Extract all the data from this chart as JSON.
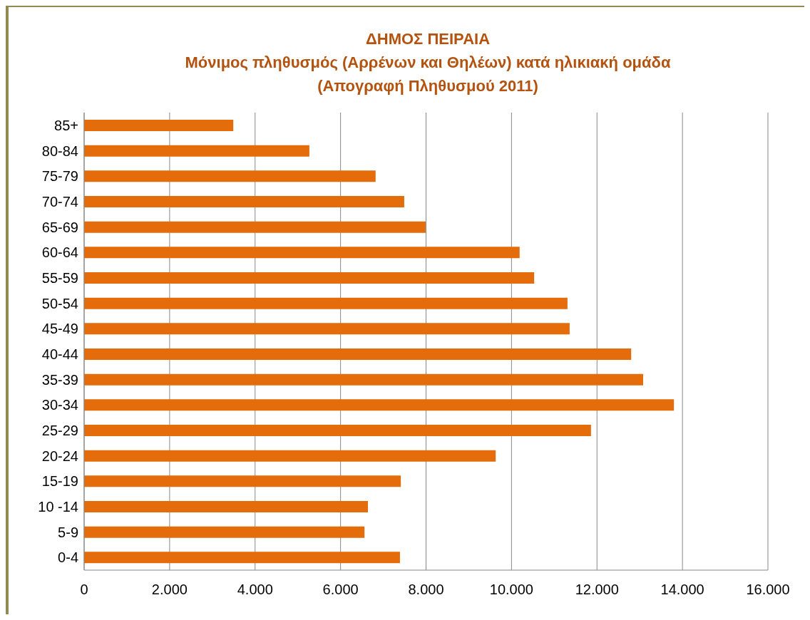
{
  "chart_data": {
    "type": "bar",
    "orientation": "horizontal",
    "title": "ΔΗΜΟΣ ΠΕΙΡΑΙΑ\nΜόνιμος πληθυσμός (Αρρένων και Θηλέων) κατά ηλικιακή ομάδα\n(Απογραφή Πληθυσμού 2011)",
    "categories": [
      "85+",
      "80-84",
      "75-79",
      "70-74",
      "65-69",
      "60-64",
      "55-59",
      "50-54",
      "45-49",
      "40-44",
      "35-39",
      "30-34",
      "25-29",
      "20-24",
      "15-19",
      "10 -14",
      "5-9",
      "0-4"
    ],
    "values": [
      3490,
      5270,
      6820,
      7490,
      7990,
      10190,
      10530,
      11310,
      11360,
      12800,
      13080,
      13800,
      11860,
      9630,
      7410,
      6640,
      6560,
      7390
    ],
    "color": "#e46c0a",
    "xlim": [
      0,
      16000
    ],
    "xticks": [
      0,
      {
        "value": 2000,
        "label": "2.000"
      },
      {
        "value": 4000,
        "label": "4.000"
      },
      {
        "value": 6000,
        "label": "6.000"
      },
      {
        "value": 8000,
        "label": "8.000"
      },
      {
        "value": 10000,
        "label": "10.000"
      },
      {
        "value": 12000,
        "label": "12.000"
      },
      {
        "value": 14000,
        "label": "14.000"
      },
      {
        "value": 16000,
        "label": "16.000"
      }
    ],
    "grid": "x",
    "legend": false
  }
}
